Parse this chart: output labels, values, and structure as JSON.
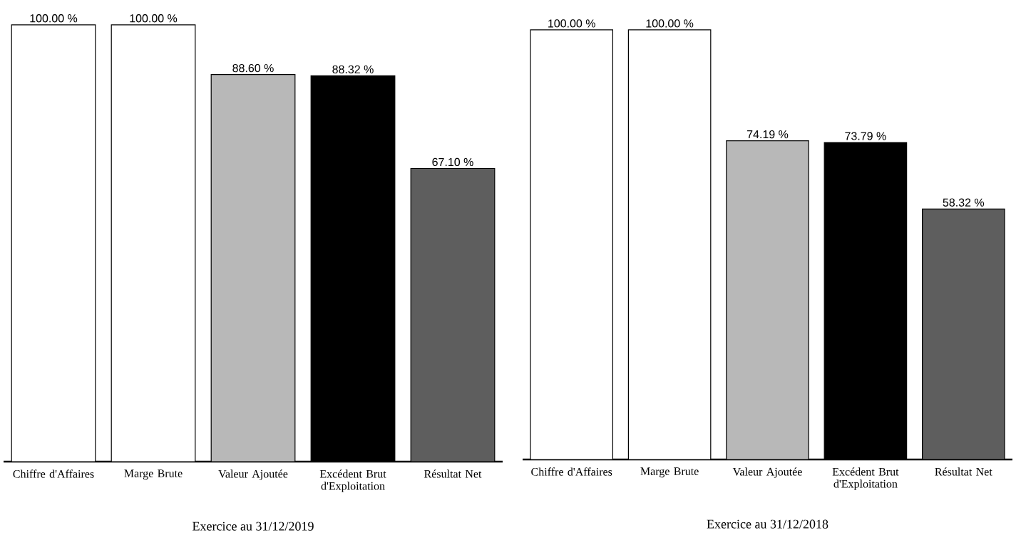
{
  "chart_data": [
    {
      "type": "bar",
      "xlabel": "Exercice au  31/12/2019",
      "categories": [
        "Chiffre d'Affaires",
        "Marge Brute",
        "Valeur Ajoutée",
        "Excédent Brut d'Exploitation",
        "Résultat Net"
      ],
      "values": [
        100,
        100,
        88.6,
        88.32,
        67.1
      ],
      "value_labels": [
        "100.00 %",
        "100.00 %",
        "88.60 %",
        "88.32 %",
        "67.10 %"
      ],
      "colors": [
        "#ffffff",
        "#ffffff",
        "#b8b8b8",
        "#000000",
        "#5e5e5e"
      ]
    },
    {
      "type": "bar",
      "xlabel": "Exercice au  31/12/2018",
      "categories": [
        "Chiffre d'Affaires",
        "Marge Brute",
        "Valeur Ajoutée",
        "Excédent Brut d'Exploitation",
        "Résultat Net"
      ],
      "values": [
        100,
        100,
        74.19,
        73.79,
        58.32
      ],
      "value_labels": [
        "100.00 %",
        "100.00 %",
        "74.19 %",
        "73.79 %",
        "58.32 %"
      ],
      "colors": [
        "#ffffff",
        "#ffffff",
        "#b8b8b8",
        "#000000",
        "#5e5e5e"
      ]
    }
  ]
}
